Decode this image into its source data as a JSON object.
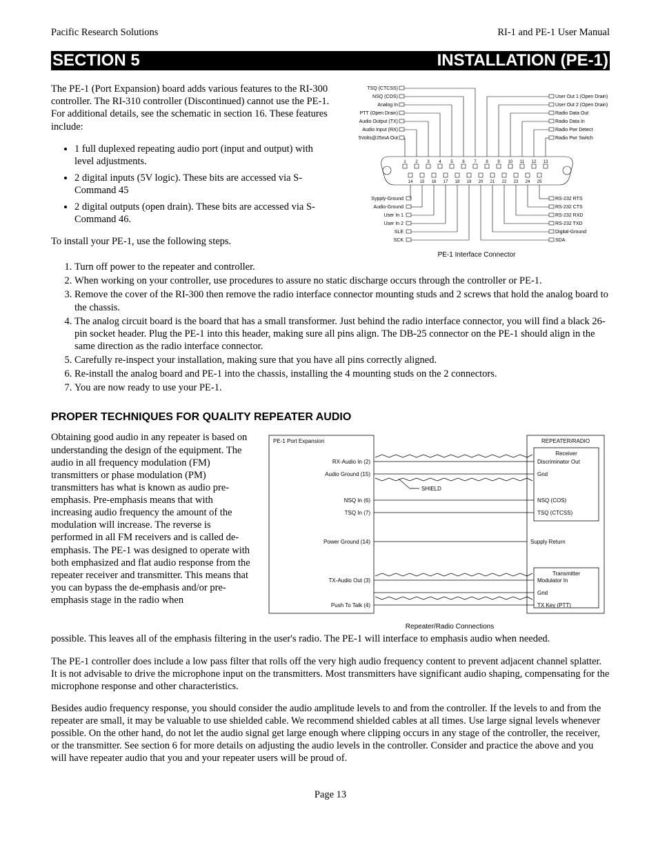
{
  "header": {
    "left": "Pacific Research Solutions",
    "right": "RI-1 and PE-1 User Manual"
  },
  "section_bar": {
    "left": "SECTION 5",
    "right": "INSTALLATION (PE-1)"
  },
  "intro": "The PE-1 (Port Expansion) board adds various features to the RI-300 controller.  The RI-310 controller (Discontinued) cannot use the PE-1.  For additional details, see the schematic in section 16.  These features include:",
  "features": [
    "1 full duplexed repeating audio port (input and output) with level adjustments.",
    "2 digital inputs (5V logic).  These bits are accessed via S-Command 45",
    "2 digital outputs (open drain).  These bits are accessed via S-Command 46."
  ],
  "install_lead": "To install your PE-1, use the following steps.",
  "steps": [
    "Turn off power to the repeater and controller.",
    "When working on your controller, use procedures to assure no static discharge occurs through the controller or PE-1.",
    "Remove the cover of the RI-300 then remove the radio interface connector mounting studs and 2 screws that hold the analog board to the chassis.",
    "The analog circuit board is the board that has a small transformer.  Just behind the radio interface connector, you will find a black 26-pin socket header.  Plug the PE-1 into this header, making sure all pins align.  The DB-25 connector on the PE-1 should align in the same direction as the radio interface connector.",
    "Carefully re-inspect your installation, making sure that you have all pins correctly aligned.",
    "Re-install the analog board and PE-1 into the chassis, installing the 4 mounting studs on the 2 connectors.",
    "You are now ready to use your PE-1."
  ],
  "sub_heading": "PROPER TECHNIQUES FOR QUALITY REPEATER AUDIO",
  "audio_left": "Obtaining good audio in any repeater is based on understanding the design of the equipment.  The audio in all frequency modulation (FM) transmitters or phase modulation (PM) transmitters has what is known as audio pre-emphasis.  Pre-emphasis means that with increasing audio frequency the amount of the modulation will increase.  The reverse is performed in all FM receivers and is called de-emphasis.  The PE-1 was designed to operate with both emphasized and flat audio response from the repeater receiver and transmitter.  This means that you can bypass the de-emphasis and/or pre-emphasis stage in the radio when",
  "audio_after": "possible.  This leaves all of the emphasis filtering in the user's radio.  The PE-1 will interface to emphasis audio when needed.",
  "para2": "The PE-1 controller does include a low pass filter that rolls off the very high audio frequency content to prevent adjacent channel splatter.  It is not advisable to drive the microphone input on the transmitters.  Most transmitters have significant audio shaping, compensating for the microphone response and other characteristics.",
  "para3": "Besides audio frequency response, you should consider the audio amplitude levels to and from the controller.  If the levels to and from the repeater are small, it may be valuable to use shielded cable.  We recommend shielded cables at all times.  Use large signal levels whenever possible.  On the other hand, do not let the audio signal get large enough where clipping occurs in any stage of the controller, the receiver, or the transmitter.  See section 6 for more details on adjusting the audio levels in the controller.  Consider and practice the above and you will have repeater audio that you and your repeater users will be proud of.",
  "page_num": "Page 13",
  "conn": {
    "caption": "PE-1 Interface Connector",
    "left": [
      "TSQ (CTCSS)",
      "NSQ (COS)",
      "Analog In",
      "PTT (Open Drain)",
      "Audio Output (TX)",
      "Audio Input (RX)",
      "5Volts@25mA Out"
    ],
    "right": [
      "User Out 1 (Open Drain)",
      "User Out 2 (Open Drain)",
      "Radio Data Out",
      "Radio Data In",
      "Radio Pwr Detect",
      "Radio Pwr Switch"
    ],
    "bot_left": [
      "Sypply-Ground",
      "Audio-Ground",
      "User In 1",
      "User In 2",
      "SLE",
      "SCK"
    ],
    "bot_right": [
      "RS-232 RTS",
      "RS-232 CTS",
      "RS-232 RXD",
      "RS-232 TXD",
      "Digital-Ground",
      "SDA"
    ],
    "pins_top": [
      "1",
      "2",
      "3",
      "4",
      "5",
      "6",
      "7",
      "8",
      "9",
      "10",
      "11",
      "12",
      "13"
    ],
    "pins_bot": [
      "14",
      "15",
      "16",
      "17",
      "18",
      "19",
      "20",
      "21",
      "22",
      "23",
      "24",
      "25"
    ]
  },
  "rep": {
    "caption": "Repeater/Radio Connections",
    "left_title": "PE-1 Port Expansion",
    "right_title": "REPEATER/RADIO",
    "rx_box": "Receiver",
    "tx_box": "Transmitter",
    "shield": "SHIELD",
    "left_sig": [
      "RX-Audio In (2)",
      "Audio Ground (15)",
      "NSQ In (6)",
      "TSQ In (7)",
      "Power Ground (14)",
      "TX-Audio Out (3)",
      "Push To Talk (4)"
    ],
    "right_sig": [
      "Discriminator Out",
      "Gnd",
      "NSQ (COS)",
      "TSQ (CTCSS)",
      "Supply Return",
      "Modulator In",
      "Gnd",
      "TX Key (PTT)"
    ]
  }
}
